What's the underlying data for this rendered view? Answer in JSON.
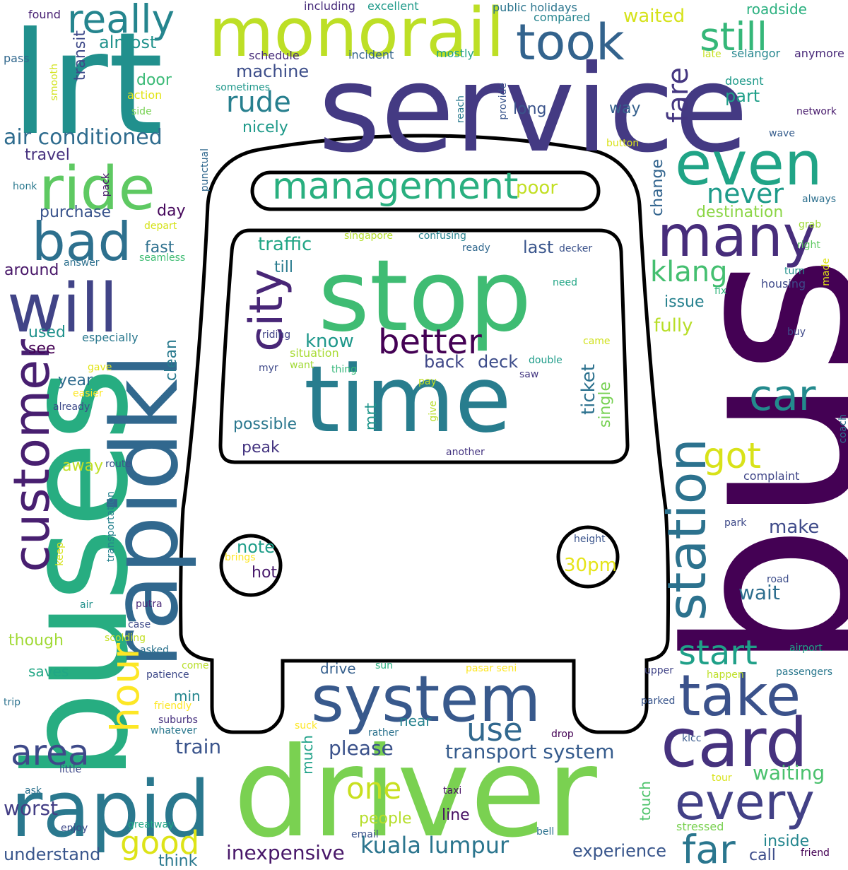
{
  "cloud": {
    "words": [
      {
        "text": "bus",
        "color": "#440154"
      },
      {
        "text": "service",
        "color": "#443a83"
      },
      {
        "text": "driver",
        "color": "#7ad151"
      },
      {
        "text": "stop",
        "color": "#3fbc73"
      },
      {
        "text": "time",
        "color": "#287d8e"
      },
      {
        "text": "lrt",
        "color": "#21908d"
      },
      {
        "text": "buses",
        "color": "#27ad81"
      },
      {
        "text": "monorail",
        "color": "#bddf26"
      },
      {
        "text": "rapid",
        "color": "#2a788e"
      },
      {
        "text": "card",
        "color": "#46327e"
      },
      {
        "text": "system",
        "color": "#38598c"
      },
      {
        "text": "will",
        "color": "#414487"
      },
      {
        "text": "rapidkl",
        "color": "#31688e"
      },
      {
        "text": "customer",
        "color": "#481f70"
      },
      {
        "text": "station",
        "color": "#2c728e"
      },
      {
        "text": "ride",
        "color": "#5ec962"
      },
      {
        "text": "even",
        "color": "#20a486"
      },
      {
        "text": "took",
        "color": "#33638d"
      },
      {
        "text": "many",
        "color": "#472d7b"
      },
      {
        "text": "take",
        "color": "#3b528b"
      },
      {
        "text": "city",
        "color": "#482677"
      },
      {
        "text": "bad",
        "color": "#2d708e"
      },
      {
        "text": "really",
        "color": "#25858e"
      },
      {
        "text": "every",
        "color": "#424086"
      },
      {
        "text": "hour",
        "color": "#fde725"
      },
      {
        "text": "car",
        "color": "#238a8d"
      },
      {
        "text": "still",
        "color": "#35b779"
      },
      {
        "text": "area",
        "color": "#3e4989"
      },
      {
        "text": "management",
        "color": "#29af7f"
      },
      {
        "text": "far",
        "color": "#2a768e"
      },
      {
        "text": "fare",
        "color": "#453781"
      },
      {
        "text": "better",
        "color": "#440154"
      },
      {
        "text": "use",
        "color": "#31688e"
      },
      {
        "text": "good",
        "color": "#dde318"
      },
      {
        "text": "start",
        "color": "#1fa088"
      },
      {
        "text": "got",
        "color": "#d8e219"
      },
      {
        "text": "one",
        "color": "#c8e020"
      },
      {
        "text": "rude",
        "color": "#277f8e"
      },
      {
        "text": "klang",
        "color": "#44bf70"
      },
      {
        "text": "never",
        "color": "#1e9b8a"
      },
      {
        "text": "air conditioned",
        "color": "#2f6c8e"
      },
      {
        "text": "kuala lumpur",
        "color": "#2b758e"
      },
      {
        "text": "transport system",
        "color": "#365c8d"
      },
      {
        "text": "please",
        "color": "#3b528b"
      },
      {
        "text": "inexpensive",
        "color": "#481769"
      },
      {
        "text": "experience",
        "color": "#39568c"
      },
      {
        "text": "waiting",
        "color": "#4ac16d"
      },
      {
        "text": "understand",
        "color": "#39568c"
      },
      {
        "text": "worst",
        "color": "#433e85"
      },
      {
        "text": "train",
        "color": "#3a548c"
      },
      {
        "text": "wait",
        "color": "#2e6e8e"
      },
      {
        "text": "make",
        "color": "#3e4a89"
      },
      {
        "text": "ticket",
        "color": "#2c718e"
      },
      {
        "text": "know",
        "color": "#1f988b"
      },
      {
        "text": "traffic",
        "color": "#21a585"
      },
      {
        "text": "last",
        "color": "#39558c"
      },
      {
        "text": "poor",
        "color": "#c2df23"
      },
      {
        "text": "possible",
        "color": "#2a778e"
      },
      {
        "text": "peak",
        "color": "#453581"
      },
      {
        "text": "back",
        "color": "#3f4788"
      },
      {
        "text": "deck",
        "color": "#3d4d8a"
      },
      {
        "text": "till",
        "color": "#297b8e"
      },
      {
        "text": "single",
        "color": "#77d153"
      },
      {
        "text": "mrt",
        "color": "#1f958b"
      },
      {
        "text": "30pm",
        "color": "#e5e419"
      },
      {
        "text": "note",
        "color": "#1f9e89"
      },
      {
        "text": "hot",
        "color": "#481a6c"
      },
      {
        "text": "fully",
        "color": "#b8de29"
      },
      {
        "text": "issue",
        "color": "#26818e"
      },
      {
        "text": "destination",
        "color": "#8bd646"
      },
      {
        "text": "change",
        "color": "#32648e"
      },
      {
        "text": "waited",
        "color": "#d5e21a"
      },
      {
        "text": "part",
        "color": "#1f9f88"
      },
      {
        "text": "long",
        "color": "#3a538b"
      },
      {
        "text": "way",
        "color": "#35608d"
      },
      {
        "text": "machine",
        "color": "#3d4e8a"
      },
      {
        "text": "almost",
        "color": "#20928c"
      },
      {
        "text": "nicely",
        "color": "#1f9a8a"
      },
      {
        "text": "door",
        "color": "#3aba76"
      },
      {
        "text": "transit",
        "color": "#3e4989"
      },
      {
        "text": "travel",
        "color": "#46307e"
      },
      {
        "text": "purchase",
        "color": "#3a548c"
      },
      {
        "text": "day",
        "color": "#46085c"
      },
      {
        "text": "fast",
        "color": "#2d708e"
      },
      {
        "text": "around",
        "color": "#481769"
      },
      {
        "text": "used",
        "color": "#20928c"
      },
      {
        "text": "see",
        "color": "#440154"
      },
      {
        "text": "year",
        "color": "#2f6b8e"
      },
      {
        "text": "clean",
        "color": "#297a8e"
      },
      {
        "text": "away",
        "color": "#c0df25"
      },
      {
        "text": "drive",
        "color": "#355f8d"
      },
      {
        "text": "saves",
        "color": "#22a785"
      },
      {
        "text": "min",
        "color": "#24868e"
      },
      {
        "text": "though",
        "color": "#a2da37"
      },
      {
        "text": "near",
        "color": "#26828e"
      },
      {
        "text": "much",
        "color": "#1fa188"
      },
      {
        "text": "people",
        "color": "#b5de2b"
      },
      {
        "text": "line",
        "color": "#471063"
      },
      {
        "text": "touch",
        "color": "#4ec36b"
      },
      {
        "text": "inside",
        "color": "#24868e"
      },
      {
        "text": "call",
        "color": "#3d4d8a"
      },
      {
        "text": "think",
        "color": "#2a788e"
      },
      {
        "text": "found",
        "color": "#482173"
      },
      {
        "text": "including",
        "color": "#472c7a"
      },
      {
        "text": "excellent",
        "color": "#1f9a8a"
      },
      {
        "text": "public holidays",
        "color": "#2b758e"
      },
      {
        "text": "compared",
        "color": "#25848e"
      },
      {
        "text": "roadside",
        "color": "#2ab07f"
      },
      {
        "text": "late",
        "color": "#c5e021"
      },
      {
        "text": "selangor",
        "color": "#24868e"
      },
      {
        "text": "anymore",
        "color": "#482878"
      },
      {
        "text": "pass",
        "color": "#31688e"
      },
      {
        "text": "smooth",
        "color": "#d2e21b"
      },
      {
        "text": "schedule",
        "color": "#472c7a"
      },
      {
        "text": "incident",
        "color": "#33638d"
      },
      {
        "text": "mostly",
        "color": "#20a386"
      },
      {
        "text": "action",
        "color": "#e2e418"
      },
      {
        "text": "sometimes",
        "color": "#1f988b"
      },
      {
        "text": "side",
        "color": "#77d153"
      },
      {
        "text": "reach",
        "color": "#297a8e"
      },
      {
        "text": "provide",
        "color": "#39558c"
      },
      {
        "text": "doesnt",
        "color": "#1f9a8a"
      },
      {
        "text": "network",
        "color": "#481b6d"
      },
      {
        "text": "wave",
        "color": "#365d8d"
      },
      {
        "text": "button",
        "color": "#d8e219"
      },
      {
        "text": "punctual",
        "color": "#31688e"
      },
      {
        "text": "always",
        "color": "#2d708e"
      },
      {
        "text": "grab",
        "color": "#a0da39"
      },
      {
        "text": "honk",
        "color": "#2a788e"
      },
      {
        "text": "pack",
        "color": "#48186a"
      },
      {
        "text": "depart",
        "color": "#d5e21a"
      },
      {
        "text": "singapore",
        "color": "#b5de2b"
      },
      {
        "text": "confusing",
        "color": "#26828e"
      },
      {
        "text": "ready",
        "color": "#31688e"
      },
      {
        "text": "decker",
        "color": "#3b528b"
      },
      {
        "text": "right",
        "color": "#5ec962"
      },
      {
        "text": "turn",
        "color": "#21918c"
      },
      {
        "text": "made",
        "color": "#dde318"
      },
      {
        "text": "answer",
        "color": "#2d708e"
      },
      {
        "text": "seamless",
        "color": "#3fbc73"
      },
      {
        "text": "housing",
        "color": "#3e4989"
      },
      {
        "text": "need",
        "color": "#21a585"
      },
      {
        "text": "fix",
        "color": "#31b57b"
      },
      {
        "text": "especially",
        "color": "#2a788e"
      },
      {
        "text": "riding",
        "color": "#414487"
      },
      {
        "text": "buy",
        "color": "#3e4989"
      },
      {
        "text": "came",
        "color": "#d0e11c"
      },
      {
        "text": "situation",
        "color": "#a8db34"
      },
      {
        "text": "myr",
        "color": "#3e4989"
      },
      {
        "text": "want",
        "color": "#a2da37"
      },
      {
        "text": "thing",
        "color": "#35b779"
      },
      {
        "text": "double",
        "color": "#1e9c89"
      },
      {
        "text": "saw",
        "color": "#453882"
      },
      {
        "text": "gave",
        "color": "#e2e418"
      },
      {
        "text": "easier",
        "color": "#fde725"
      },
      {
        "text": "pay",
        "color": "#c2df23"
      },
      {
        "text": "give",
        "color": "#b8de29"
      },
      {
        "text": "already",
        "color": "#3e4a89"
      },
      {
        "text": "coach",
        "color": "#2c728e"
      },
      {
        "text": "route",
        "color": "#3b528b"
      },
      {
        "text": "another",
        "color": "#453581"
      },
      {
        "text": "complaint",
        "color": "#404688"
      },
      {
        "text": "transportation",
        "color": "#26828e"
      },
      {
        "text": "park",
        "color": "#3e4a89"
      },
      {
        "text": "keep",
        "color": "#d5e21a"
      },
      {
        "text": "height",
        "color": "#3a548c"
      },
      {
        "text": "brings",
        "color": "#fde725"
      },
      {
        "text": "road",
        "color": "#3d4d8a"
      },
      {
        "text": "air",
        "color": "#21918c"
      },
      {
        "text": "putra",
        "color": "#482878"
      },
      {
        "text": "case",
        "color": "#3e4989"
      },
      {
        "text": "scolding",
        "color": "#c2df23"
      },
      {
        "text": "asked",
        "color": "#2c728e"
      },
      {
        "text": "airport",
        "color": "#20a386"
      },
      {
        "text": "come",
        "color": "#b8de29"
      },
      {
        "text": "patience",
        "color": "#3e4989"
      },
      {
        "text": "sun",
        "color": "#29af7f"
      },
      {
        "text": "pasar seni",
        "color": "#fde725"
      },
      {
        "text": "upper",
        "color": "#414487"
      },
      {
        "text": "happen",
        "color": "#bddf26"
      },
      {
        "text": "passengers",
        "color": "#2a788e"
      },
      {
        "text": "trip",
        "color": "#2c728e"
      },
      {
        "text": "friendly",
        "color": "#fde725"
      },
      {
        "text": "parked",
        "color": "#39558c"
      },
      {
        "text": "suburbs",
        "color": "#46307e"
      },
      {
        "text": "whatever",
        "color": "#2a788e"
      },
      {
        "text": "suck",
        "color": "#fde725"
      },
      {
        "text": "rather",
        "color": "#2c728e"
      },
      {
        "text": "drop",
        "color": "#440154"
      },
      {
        "text": "klcc",
        "color": "#38598c"
      },
      {
        "text": "little",
        "color": "#3e4989"
      },
      {
        "text": "tour",
        "color": "#d8e219"
      },
      {
        "text": "ask",
        "color": "#2c728e"
      },
      {
        "text": "taxi",
        "color": "#471063"
      },
      {
        "text": "enjoy",
        "color": "#3e4989"
      },
      {
        "text": "greatway",
        "color": "#22a785"
      },
      {
        "text": "email",
        "color": "#3b528b"
      },
      {
        "text": "bell",
        "color": "#2c728e"
      },
      {
        "text": "stressed",
        "color": "#7ad151"
      },
      {
        "text": "friend",
        "color": "#440154"
      }
    ]
  }
}
